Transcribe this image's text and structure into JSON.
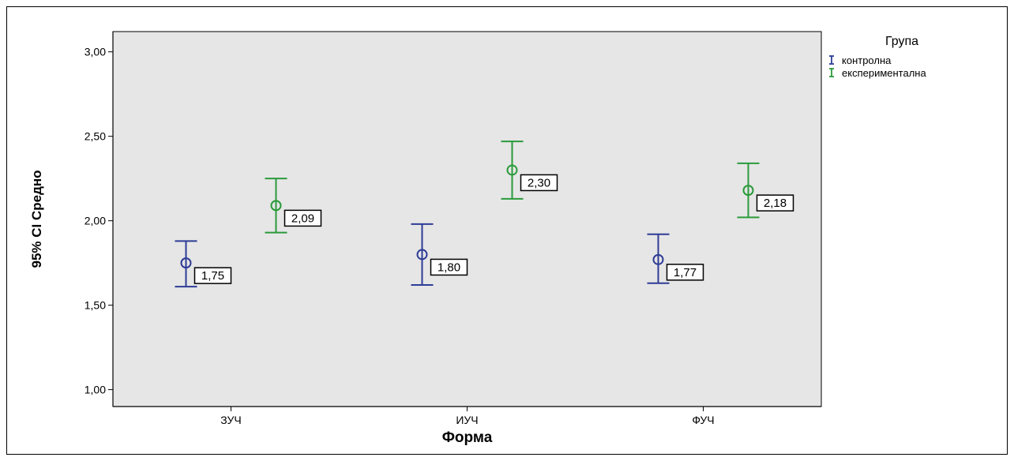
{
  "chart_data": {
    "type": "scatter",
    "subtype": "error-bar",
    "xlabel": "Форма",
    "ylabel": "95% CI Средно",
    "categories": [
      "ЗУЧ",
      "ИУЧ",
      "ФУЧ"
    ],
    "ylim": [
      0.9,
      3.12
    ],
    "yticks": [
      "1,00",
      "1,50",
      "2,00",
      "2,50",
      "3,00"
    ],
    "ytick_values": [
      1.0,
      1.5,
      2.0,
      2.5,
      3.0
    ],
    "grid": false,
    "legend": {
      "title": "Група",
      "position": "top-right"
    },
    "series": [
      {
        "name": "контролна",
        "color": "#2e3c96",
        "values": [
          1.75,
          1.8,
          1.77
        ],
        "lower": [
          1.61,
          1.62,
          1.63
        ],
        "upper": [
          1.88,
          1.98,
          1.92
        ],
        "labels": [
          "1,75",
          "1,80",
          "1,77"
        ]
      },
      {
        "name": "експериментална",
        "color": "#2a9a3a",
        "values": [
          2.09,
          2.3,
          2.18
        ],
        "lower": [
          1.93,
          2.13,
          2.02
        ],
        "upper": [
          2.25,
          2.47,
          2.34
        ],
        "labels": [
          "2,09",
          "2,30",
          "2,18"
        ]
      }
    ],
    "plot_background": "#e6e6e6"
  }
}
